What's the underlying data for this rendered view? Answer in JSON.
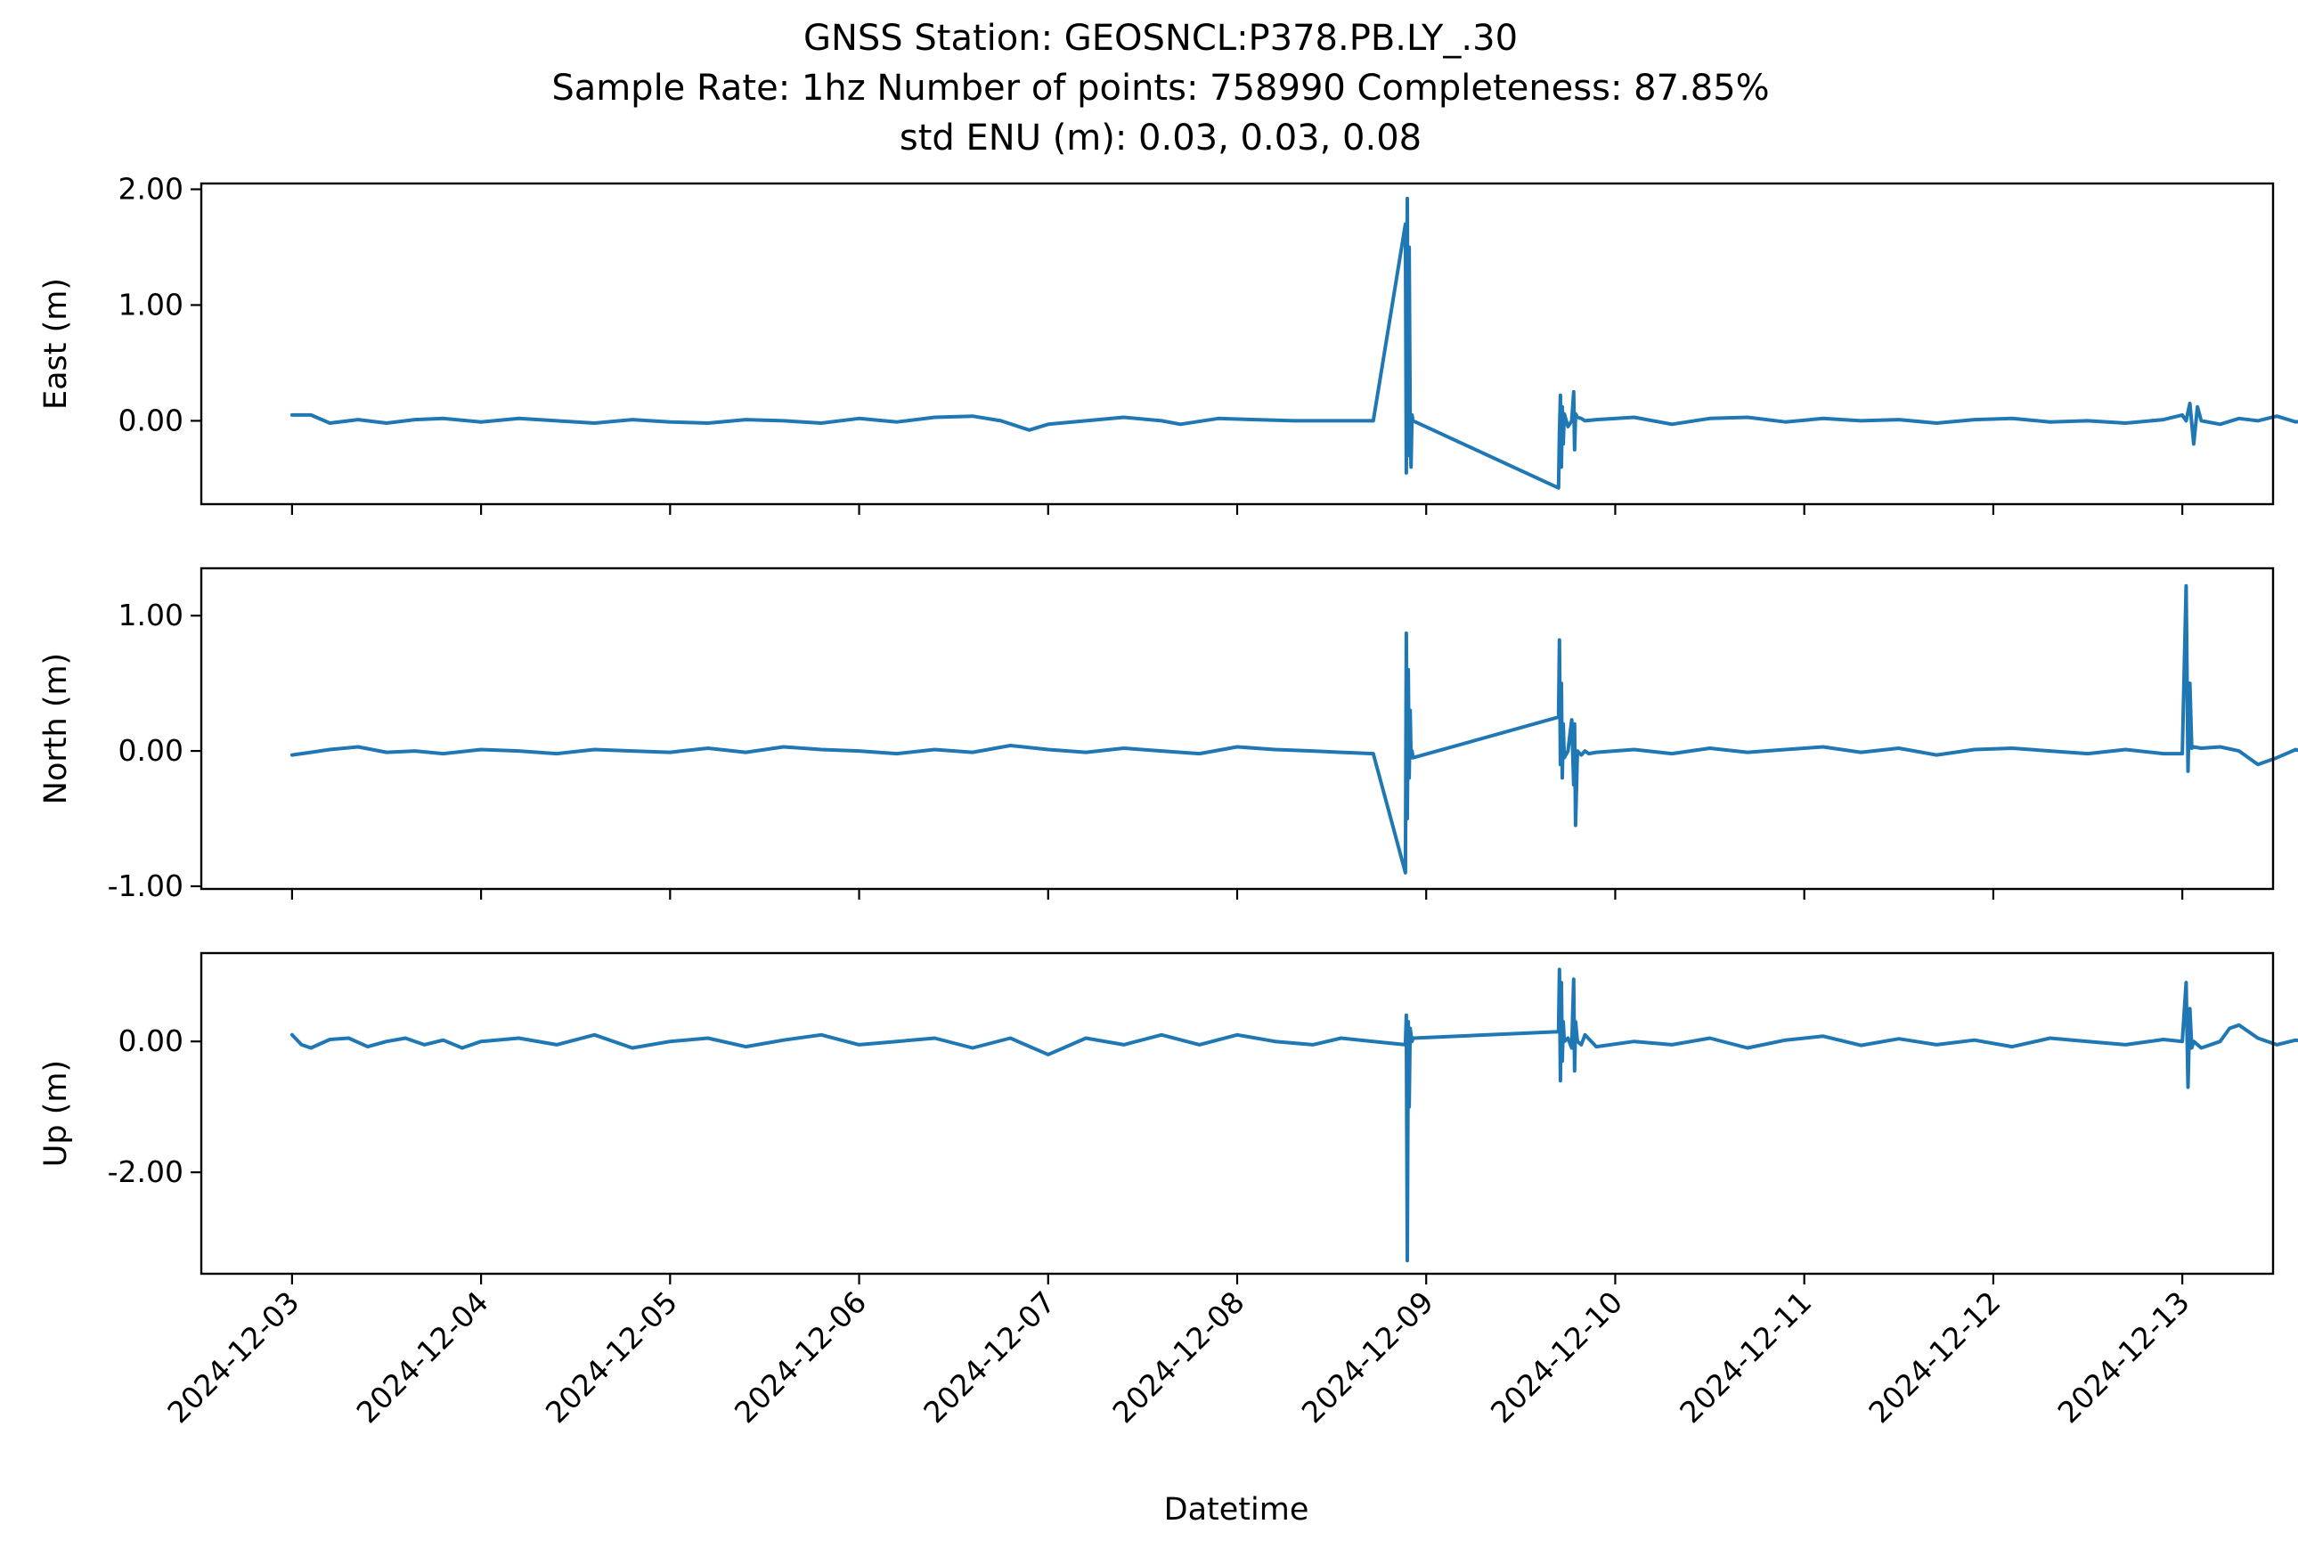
{
  "title_lines": [
    "GNSS Station: GEOSNCL:P378.PB.LY_.30",
    "Sample Rate: 1hz   Number of points: 758990    Completeness:  87.85%",
    "std ENU (m):  0.03, 0.03, 0.08"
  ],
  "colors": {
    "series": "#1f77b4",
    "axes": "#000000"
  },
  "chart_data": {
    "type": "line",
    "xlabel": "Datetime",
    "x_unit": "days since 2024-12-03",
    "x_range": [
      -0.48,
      10.48
    ],
    "x_ticks": [
      "2024-12-03",
      "2024-12-04",
      "2024-12-05",
      "2024-12-06",
      "2024-12-07",
      "2024-12-08",
      "2024-12-09",
      "2024-12-10",
      "2024-12-11",
      "2024-12-12",
      "2024-12-13"
    ],
    "grid": false,
    "panels": [
      {
        "name": "east",
        "ylabel": "East (m)",
        "ylim": [
          -0.72,
          2.05
        ],
        "yticks": [
          0.0,
          1.0,
          2.0
        ],
        "ytick_labels": [
          "0.00",
          "1.00",
          "2.00"
        ],
        "x": [
          0.0,
          0.1,
          0.2,
          0.35,
          0.5,
          0.65,
          0.8,
          1.0,
          1.2,
          1.4,
          1.6,
          1.8,
          2.0,
          2.2,
          2.4,
          2.6,
          2.8,
          3.0,
          3.2,
          3.4,
          3.6,
          3.75,
          3.9,
          4.0,
          4.2,
          4.4,
          4.6,
          4.7,
          4.9,
          5.1,
          5.3,
          5.55,
          5.72,
          5.89,
          5.895,
          5.9,
          5.905,
          5.91,
          5.915,
          5.92,
          5.925,
          5.93,
          6.7,
          6.705,
          6.71,
          6.715,
          6.72,
          6.725,
          6.73,
          6.75,
          6.77,
          6.78,
          6.785,
          6.79,
          6.8,
          6.82,
          6.84,
          6.9,
          7.1,
          7.3,
          7.5,
          7.7,
          7.9,
          8.1,
          8.3,
          8.5,
          8.7,
          8.9,
          9.1,
          9.3,
          9.5,
          9.7,
          9.9,
          10.0,
          10.02,
          10.04,
          10.06,
          10.08,
          10.1,
          10.2,
          10.3,
          10.4,
          10.5,
          10.6,
          10.7,
          10.75
        ],
        "y": [
          0.05,
          0.05,
          -0.02,
          0.01,
          -0.02,
          0.01,
          0.02,
          -0.01,
          0.02,
          0.0,
          -0.02,
          0.01,
          -0.01,
          -0.02,
          0.01,
          0.0,
          -0.02,
          0.02,
          -0.01,
          0.03,
          0.04,
          0.0,
          -0.08,
          -0.03,
          0.0,
          0.03,
          0.0,
          -0.03,
          0.02,
          0.01,
          0.0,
          0.0,
          0.0,
          1.7,
          -0.45,
          1.92,
          -0.3,
          1.5,
          0.05,
          -0.4,
          0.05,
          0.0,
          -0.58,
          -0.1,
          0.22,
          -0.4,
          0.12,
          -0.2,
          0.06,
          -0.05,
          0.0,
          0.25,
          -0.25,
          0.06,
          0.03,
          0.02,
          0.0,
          0.01,
          0.03,
          -0.03,
          0.02,
          0.03,
          -0.01,
          0.02,
          0.0,
          0.01,
          -0.02,
          0.01,
          0.02,
          -0.01,
          0.0,
          -0.02,
          0.01,
          0.05,
          0.0,
          0.15,
          -0.2,
          0.12,
          0.0,
          -0.03,
          0.02,
          0.0,
          0.04,
          -0.01,
          0.01,
          -0.01
        ]
      },
      {
        "name": "north",
        "ylabel": "North (m)",
        "ylim": [
          -1.02,
          1.35
        ],
        "yticks": [
          -1.0,
          0.0,
          1.0
        ],
        "ytick_labels": [
          "-1.00",
          "0.00",
          "1.00"
        ],
        "x": [
          0.0,
          0.1,
          0.2,
          0.35,
          0.5,
          0.65,
          0.8,
          1.0,
          1.2,
          1.4,
          1.6,
          1.8,
          2.0,
          2.2,
          2.4,
          2.6,
          2.8,
          3.0,
          3.2,
          3.4,
          3.6,
          3.8,
          4.0,
          4.2,
          4.4,
          4.6,
          4.8,
          5.0,
          5.2,
          5.4,
          5.55,
          5.72,
          5.89,
          5.895,
          5.9,
          5.905,
          5.91,
          5.915,
          5.92,
          5.925,
          5.93,
          6.7,
          6.705,
          6.71,
          6.715,
          6.72,
          6.725,
          6.73,
          6.75,
          6.77,
          6.78,
          6.785,
          6.79,
          6.8,
          6.82,
          6.84,
          6.86,
          6.9,
          7.1,
          7.3,
          7.5,
          7.7,
          7.9,
          8.1,
          8.3,
          8.5,
          8.7,
          8.9,
          9.1,
          9.3,
          9.5,
          9.7,
          9.9,
          10.0,
          10.02,
          10.03,
          10.04,
          10.05,
          10.06,
          10.1,
          10.2,
          10.3,
          10.4,
          10.5,
          10.6,
          10.7,
          10.75
        ],
        "y": [
          -0.03,
          -0.01,
          0.01,
          0.03,
          -0.01,
          0.0,
          -0.02,
          0.01,
          0.0,
          -0.02,
          0.01,
          0.0,
          -0.01,
          0.02,
          -0.01,
          0.03,
          0.01,
          0.0,
          -0.02,
          0.01,
          -0.01,
          0.04,
          0.01,
          -0.01,
          0.02,
          0.0,
          -0.02,
          0.03,
          0.01,
          0.0,
          -0.01,
          -0.02,
          -0.9,
          0.87,
          -0.5,
          0.6,
          -0.2,
          0.3,
          -0.05,
          0.0,
          -0.05,
          0.25,
          0.82,
          -0.1,
          0.5,
          -0.2,
          0.2,
          -0.05,
          0.0,
          0.23,
          -0.25,
          0.2,
          -0.55,
          0.0,
          -0.03,
          0.0,
          -0.02,
          -0.01,
          0.01,
          -0.02,
          0.02,
          -0.01,
          0.01,
          0.03,
          -0.01,
          0.02,
          -0.03,
          0.01,
          0.02,
          0.0,
          -0.02,
          0.01,
          -0.02,
          -0.02,
          1.22,
          -0.15,
          0.5,
          0.02,
          0.03,
          0.02,
          0.03,
          0.0,
          -0.1,
          -0.05,
          0.01,
          -0.04,
          -0.02
        ]
      },
      {
        "name": "up",
        "ylabel": "Up (m)",
        "ylim": [
          -3.55,
          1.35
        ],
        "yticks": [
          -2.0,
          0.0
        ],
        "ytick_labels": [
          "-2.00",
          "0.00"
        ],
        "x": [
          0.0,
          0.05,
          0.1,
          0.2,
          0.3,
          0.4,
          0.5,
          0.6,
          0.7,
          0.8,
          0.9,
          1.0,
          1.2,
          1.4,
          1.6,
          1.8,
          2.0,
          2.2,
          2.4,
          2.6,
          2.8,
          3.0,
          3.2,
          3.4,
          3.6,
          3.8,
          4.0,
          4.2,
          4.4,
          4.6,
          4.8,
          5.0,
          5.2,
          5.4,
          5.55,
          5.72,
          5.89,
          5.895,
          5.9,
          5.905,
          5.91,
          5.915,
          5.92,
          5.925,
          5.93,
          6.7,
          6.705,
          6.71,
          6.715,
          6.72,
          6.725,
          6.73,
          6.75,
          6.77,
          6.78,
          6.785,
          6.79,
          6.8,
          6.82,
          6.84,
          6.9,
          7.1,
          7.3,
          7.5,
          7.7,
          7.9,
          8.1,
          8.3,
          8.5,
          8.7,
          8.9,
          9.1,
          9.3,
          9.5,
          9.7,
          9.9,
          10.0,
          10.02,
          10.03,
          10.04,
          10.05,
          10.06,
          10.1,
          10.2,
          10.25,
          10.3,
          10.4,
          10.5,
          10.6,
          10.7,
          10.75
        ],
        "y": [
          0.1,
          -0.05,
          -0.1,
          0.03,
          0.05,
          -0.08,
          0.0,
          0.05,
          -0.05,
          0.02,
          -0.1,
          0.0,
          0.05,
          -0.05,
          0.1,
          -0.1,
          0.0,
          0.05,
          -0.08,
          0.02,
          0.1,
          -0.05,
          0.0,
          0.05,
          -0.1,
          0.05,
          -0.2,
          0.05,
          -0.05,
          0.1,
          -0.05,
          0.1,
          0.0,
          -0.05,
          0.05,
          0.0,
          -0.05,
          0.4,
          -3.35,
          0.3,
          -1.0,
          0.2,
          0.1,
          0.0,
          0.05,
          0.15,
          1.1,
          -0.6,
          0.9,
          -0.3,
          0.3,
          0.0,
          0.05,
          -0.1,
          0.95,
          -0.45,
          0.3,
          0.0,
          -0.05,
          0.1,
          -0.08,
          0.0,
          -0.05,
          0.05,
          -0.1,
          0.02,
          0.08,
          -0.06,
          0.04,
          -0.05,
          0.02,
          -0.08,
          0.05,
          0.0,
          -0.05,
          0.03,
          0.0,
          0.9,
          -0.7,
          0.5,
          -0.1,
          0.0,
          -0.1,
          0.0,
          0.2,
          0.25,
          0.05,
          -0.05,
          0.02,
          -0.03,
          0.0
        ]
      }
    ]
  }
}
